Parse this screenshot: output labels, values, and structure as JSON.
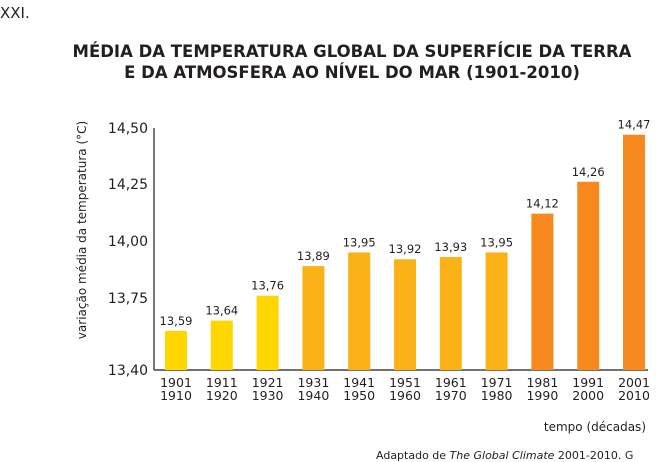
{
  "page": {
    "top_text": "XXI.",
    "source_prefix": "Adaptado de ",
    "source_italic": "The Global Climate",
    "source_suffix": " 2001-2010. G"
  },
  "chart_data": {
    "type": "bar",
    "title_line1": "MÉDIA DA TEMPERATURA GLOBAL DA SUPERFÍCIE DA TERRA",
    "title_line2": "E DA ATMOSFERA AO NÍVEL DO MAR (1901-2010)",
    "ylabel": "variação média da temperatura (°C)",
    "xlabel": "tempo (décadas)",
    "ylim": [
      13.4,
      14.5
    ],
    "yticks": [
      "14,50",
      "14,25",
      "14,00",
      "13,75",
      "13,40"
    ],
    "ytick_values": [
      14.5,
      14.25,
      14.0,
      13.75,
      13.4
    ],
    "categories": [
      [
        "1901",
        "1910"
      ],
      [
        "1911",
        "1920"
      ],
      [
        "1921",
        "1930"
      ],
      [
        "1931",
        "1940"
      ],
      [
        "1941",
        "1950"
      ],
      [
        "1951",
        "1960"
      ],
      [
        "1961",
        "1970"
      ],
      [
        "1971",
        "1980"
      ],
      [
        "1981",
        "1990"
      ],
      [
        "1991",
        "2000"
      ],
      [
        "2001",
        "2010"
      ]
    ],
    "values": [
      13.59,
      13.64,
      13.76,
      13.89,
      13.95,
      13.92,
      13.93,
      13.95,
      14.12,
      14.26,
      14.47
    ],
    "value_labels": [
      "13,59",
      "13,64",
      "13,76",
      "13,89",
      "13,95",
      "13,92",
      "13,93",
      "13,95",
      "14,12",
      "14,26",
      "14,47"
    ],
    "colors": [
      "#ffd600",
      "#ffd600",
      "#ffd600",
      "#fbb216",
      "#fbb216",
      "#fbb216",
      "#fbb216",
      "#fbb216",
      "#f7891f",
      "#f7891f",
      "#f7891f"
    ],
    "axis_color": "#231f20",
    "grid": false
  }
}
